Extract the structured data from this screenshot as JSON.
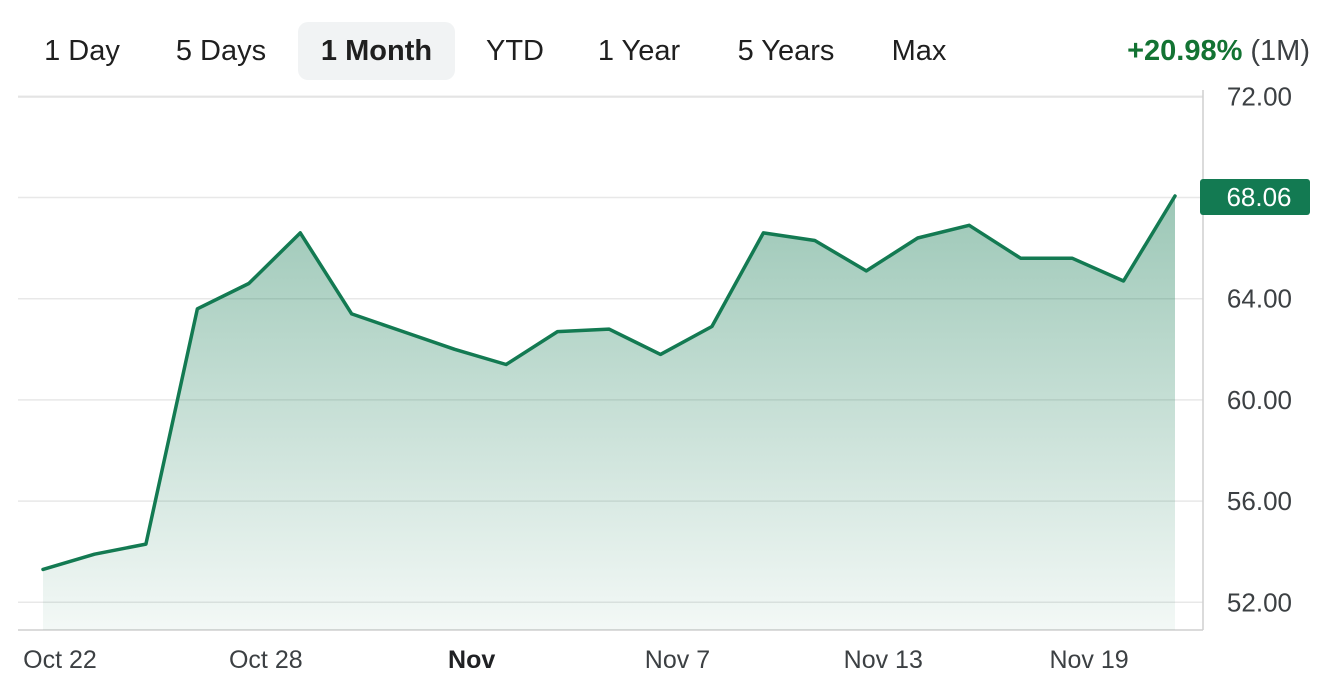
{
  "tabs": [
    {
      "label": "1 Day",
      "active": false
    },
    {
      "label": "5 Days",
      "active": false
    },
    {
      "label": "1 Month",
      "active": true
    },
    {
      "label": "YTD",
      "active": false
    },
    {
      "label": "1 Year",
      "active": false
    },
    {
      "label": "5 Years",
      "active": false
    },
    {
      "label": "Max",
      "active": false
    }
  ],
  "change": {
    "percent": "+20.98%",
    "period": "(1M)"
  },
  "colors": {
    "line": "#137a52",
    "accent_up": "#137333",
    "badge": "#137a52"
  },
  "chart_data": {
    "type": "area",
    "x": [
      "Oct 22",
      "Oct 23",
      "Oct 24",
      "Oct 25",
      "Oct 28",
      "Oct 29",
      "Oct 30",
      "Oct 31",
      "Nov 1",
      "Nov 4",
      "Nov 5",
      "Nov 6",
      "Nov 7",
      "Nov 8",
      "Nov 11",
      "Nov 12",
      "Nov 13",
      "Nov 14",
      "Nov 15",
      "Nov 18",
      "Nov 19",
      "Nov 20",
      "Nov 21"
    ],
    "series": [
      {
        "values": [
          53.3,
          53.9,
          54.3,
          63.6,
          64.6,
          66.6,
          63.4,
          62.7,
          62.0,
          61.4,
          62.7,
          62.8,
          61.8,
          62.9,
          66.6,
          66.3,
          65.1,
          66.4,
          66.9,
          65.6,
          65.6,
          64.7,
          68.06
        ]
      }
    ],
    "current_value_label": "68.06",
    "x_tick_labels": [
      {
        "label": "Oct 22",
        "index": 0,
        "bold": false
      },
      {
        "label": "Oct 28",
        "index": 4,
        "bold": false
      },
      {
        "label": "Nov",
        "index": 8,
        "bold": true
      },
      {
        "label": "Nov 7",
        "index": 12,
        "bold": false
      },
      {
        "label": "Nov 13",
        "index": 16,
        "bold": false
      },
      {
        "label": "Nov 19",
        "index": 20,
        "bold": false
      }
    ],
    "y_ticks": [
      52,
      56,
      60,
      64,
      68,
      72
    ],
    "y_tick_labels": [
      "52.00",
      "56.00",
      "60.00",
      "64.00",
      "72.00"
    ],
    "ylim": [
      51.0,
      72.0
    ],
    "grid": true,
    "axis_position": "right"
  }
}
